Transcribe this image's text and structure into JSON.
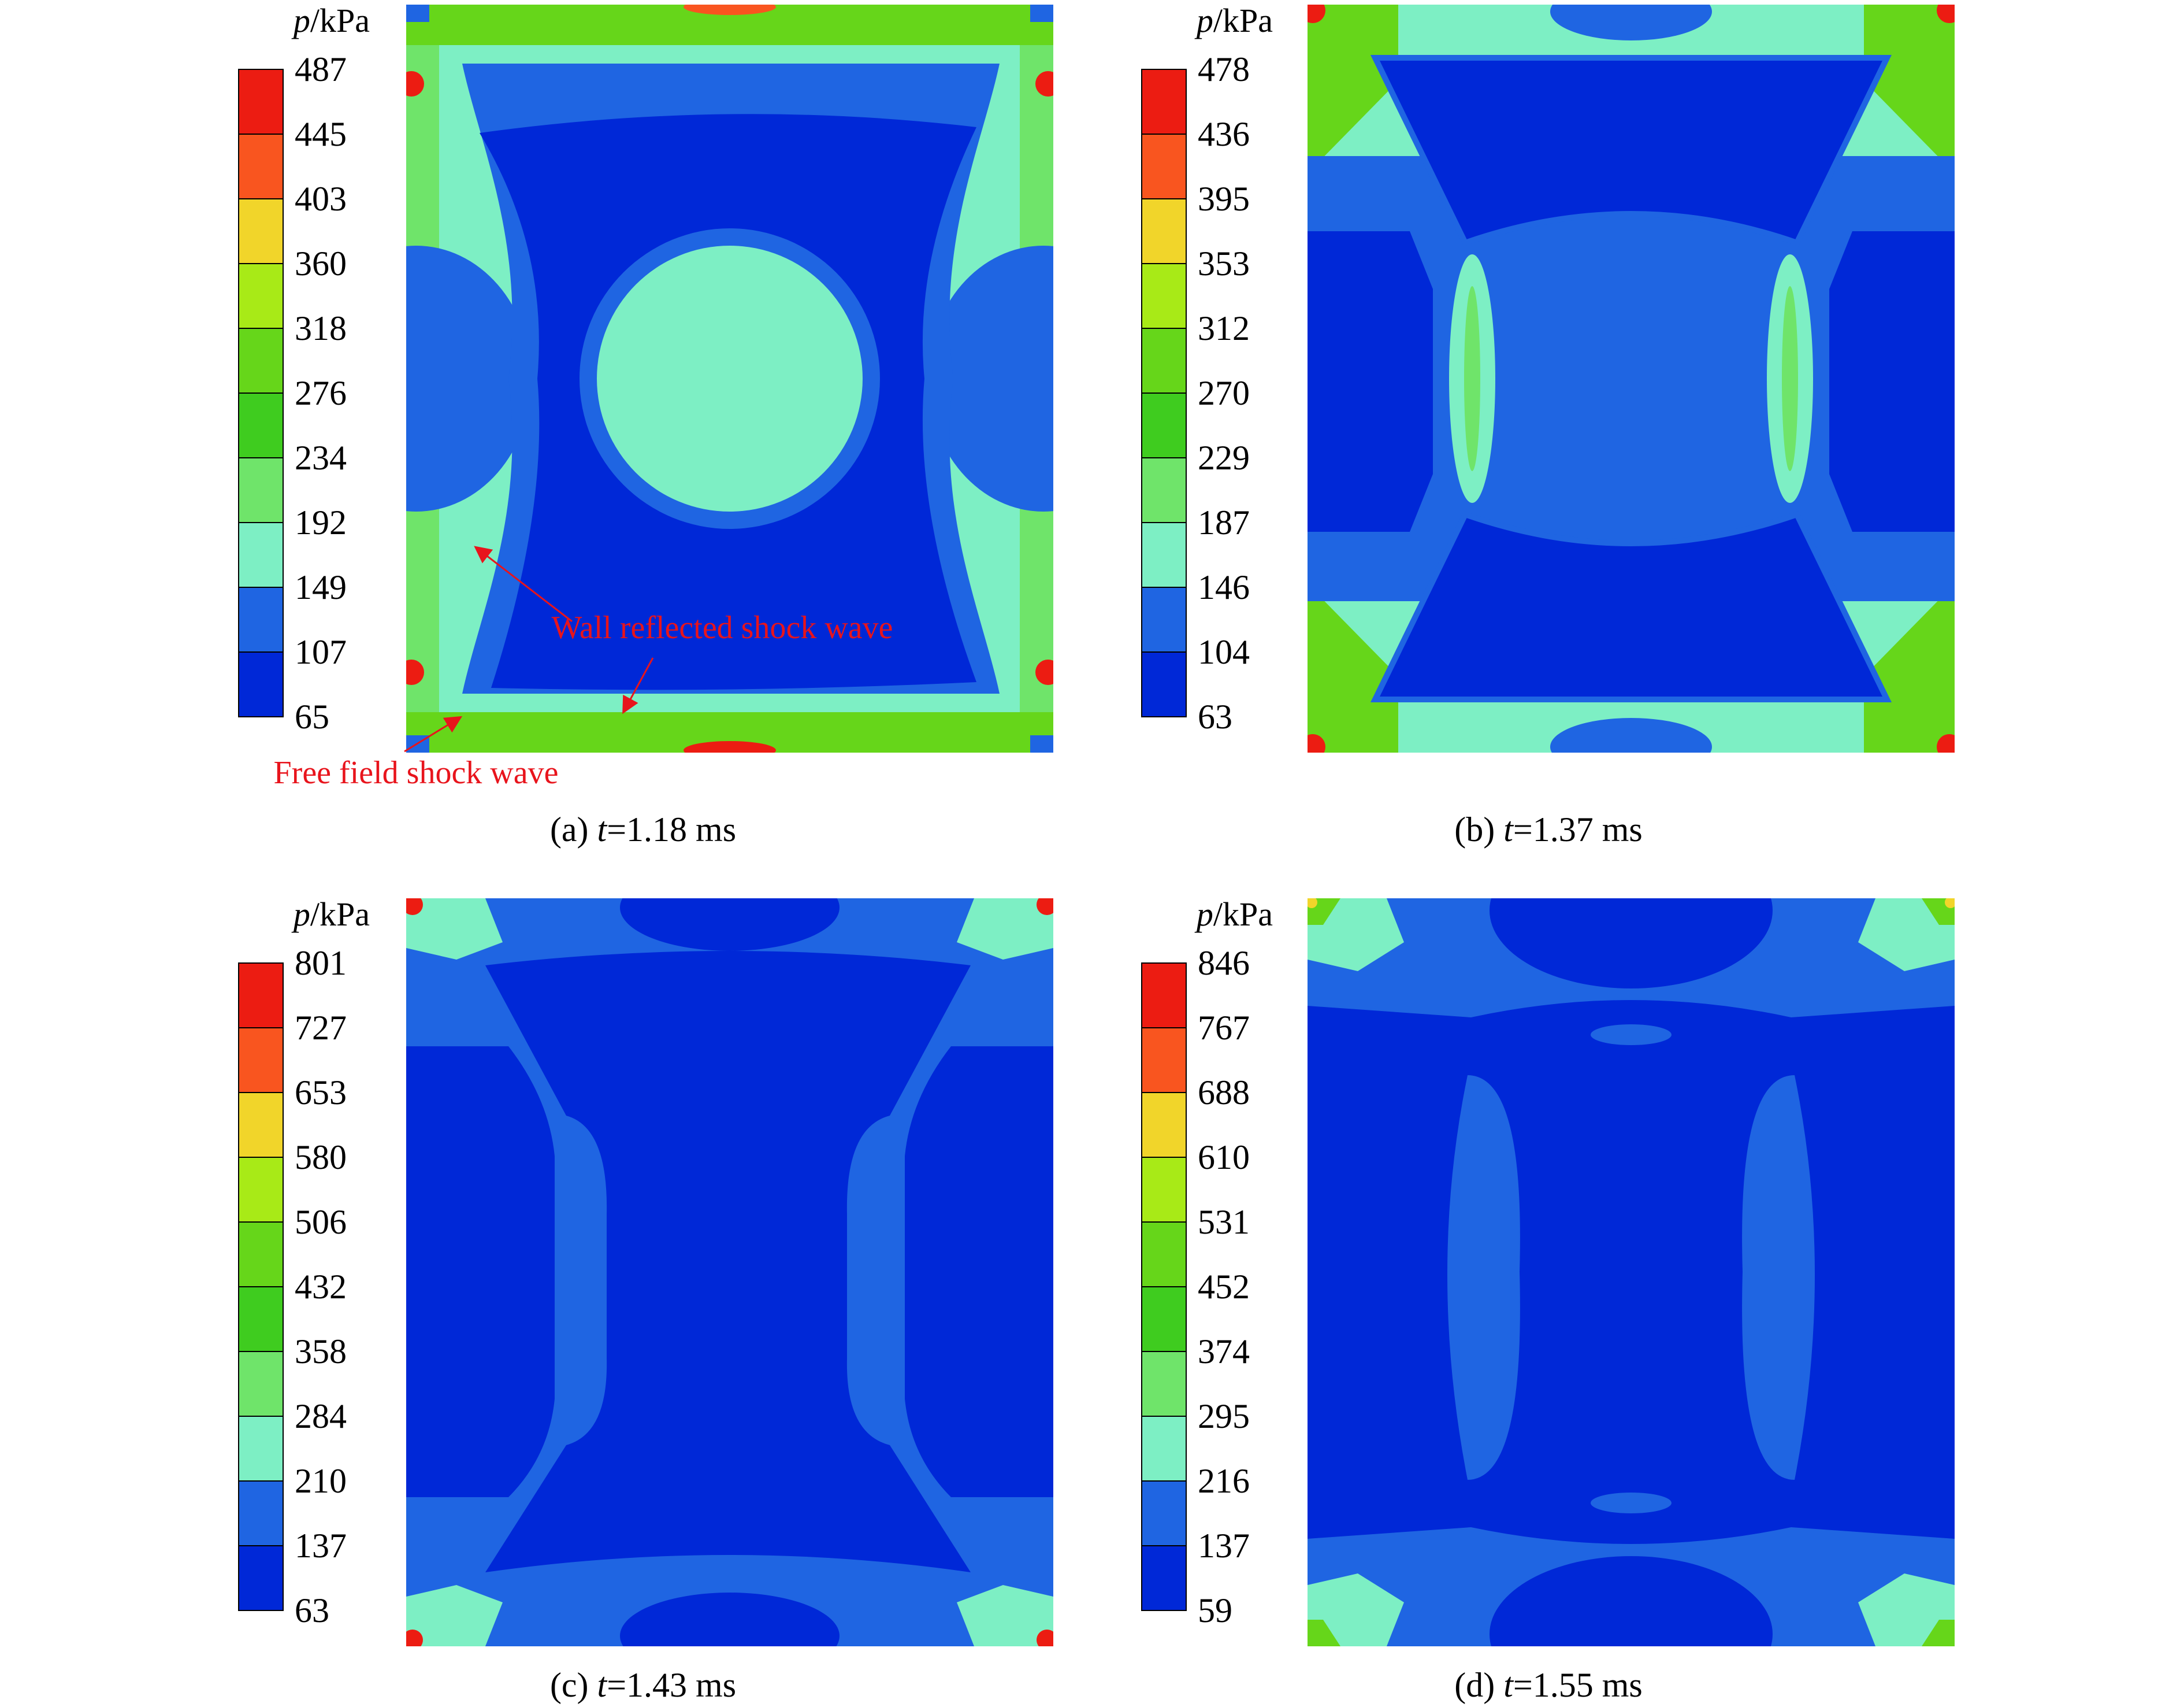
{
  "colors": {
    "levels": [
      "#0028d7",
      "#1f65e2",
      "#7defc4",
      "#6fe46a",
      "#3fcc1f",
      "#66d61a",
      "#a8ea17",
      "#f1d52a",
      "#f9551f",
      "#ec1c12"
    ],
    "deep_blue": "#0028d7",
    "mid_blue": "#1f65e2",
    "cyan": "#7defc4",
    "green": "#66d61a",
    "red": "#ec1c12",
    "annotation": "#e8141c"
  },
  "panels": [
    {
      "id": "a",
      "unit_italic": "p",
      "unit_rest": "/kPa",
      "ticks": [
        "487",
        "445",
        "403",
        "360",
        "318",
        "276",
        "234",
        "192",
        "149",
        "107",
        "65"
      ],
      "caption_pre": "(a) ",
      "caption_t": "t",
      "caption_post": "=1.18 ms",
      "annotations": [
        "Wall reflected shock wave",
        "Free field shock wave"
      ]
    },
    {
      "id": "b",
      "unit_italic": "p",
      "unit_rest": "/kPa",
      "ticks": [
        "478",
        "436",
        "395",
        "353",
        "312",
        "270",
        "229",
        "187",
        "146",
        "104",
        "63"
      ],
      "caption_pre": "(b) ",
      "caption_t": "t",
      "caption_post": "=1.37 ms"
    },
    {
      "id": "c",
      "unit_italic": "p",
      "unit_rest": "/kPa",
      "ticks": [
        "801",
        "727",
        "653",
        "580",
        "506",
        "432",
        "358",
        "284",
        "210",
        "137",
        "63"
      ],
      "caption_pre": "(c) ",
      "caption_t": "t",
      "caption_post": "=1.43 ms"
    },
    {
      "id": "d",
      "unit_italic": "p",
      "unit_rest": "/kPa",
      "ticks": [
        "846",
        "767",
        "688",
        "610",
        "531",
        "452",
        "374",
        "295",
        "216",
        "137",
        "59"
      ],
      "caption_pre": "(d) ",
      "caption_t": "t",
      "caption_post": "=1.55 ms"
    }
  ]
}
